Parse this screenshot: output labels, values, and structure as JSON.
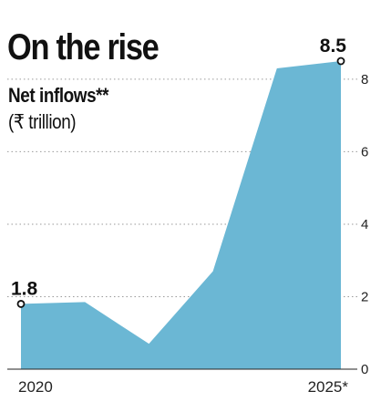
{
  "chart_data": {
    "type": "area",
    "title": "On the rise",
    "subtitle": "Net inflows**",
    "unit_label": "(₹ trillion)",
    "x": [
      2020,
      2021,
      2022,
      2023,
      2024,
      2025
    ],
    "x_tick_labels": [
      {
        "x": 2020,
        "label": "2020"
      },
      {
        "x": 2025,
        "label": "2025*"
      }
    ],
    "series": [
      {
        "values": [
          1.8,
          1.85,
          0.7,
          2.7,
          8.3,
          8.5
        ]
      }
    ],
    "ylim": [
      0,
      8.5
    ],
    "yticks": [
      0,
      2,
      4,
      6,
      8
    ],
    "y_tick_labels": [
      "0",
      "2",
      "4",
      "6",
      "8"
    ],
    "annotations": [
      {
        "x": 2020,
        "value": 1.8,
        "text": "1.8"
      },
      {
        "x": 2025,
        "value": 8.5,
        "text": "8.5"
      }
    ],
    "grid": "horizontal dotted",
    "y_axis_side": "right",
    "colors": {
      "area": "#6bb7d4",
      "text": "#111111",
      "grid": "#9a9a9a"
    }
  }
}
